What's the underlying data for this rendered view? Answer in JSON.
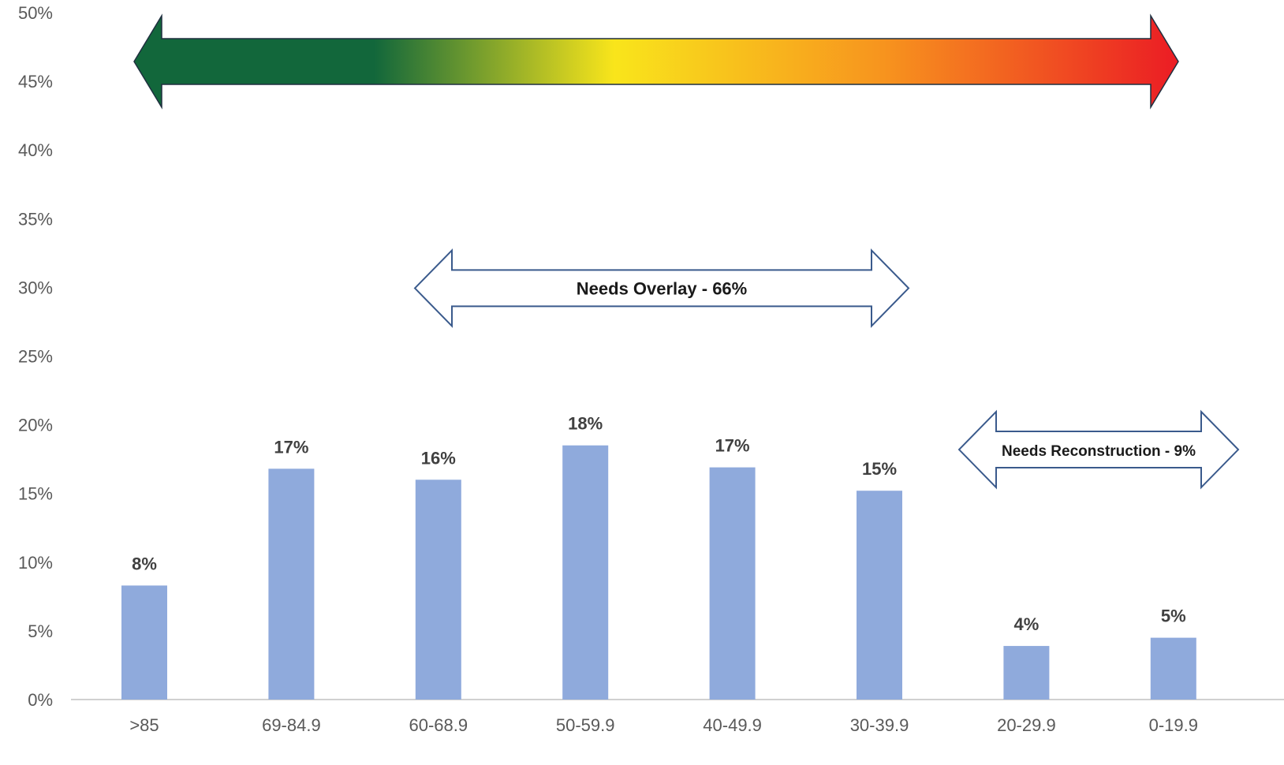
{
  "chart_data": {
    "type": "bar",
    "categories": [
      ">85",
      "69-84.9",
      "60-68.9",
      "50-59.9",
      "40-49.9",
      "30-39.9",
      "20-29.9",
      "0-19.9"
    ],
    "values": [
      8.3,
      16.8,
      16.0,
      18.5,
      16.9,
      15.2,
      3.9,
      4.5
    ],
    "data_labels": [
      "8%",
      "17%",
      "16%",
      "18%",
      "17%",
      "15%",
      "4%",
      "5%"
    ],
    "ylim": [
      0,
      50
    ],
    "yticks": [
      0,
      5,
      10,
      15,
      20,
      25,
      30,
      35,
      40,
      45,
      50
    ],
    "ytick_labels": [
      "0%",
      "5%",
      "10%",
      "15%",
      "20%",
      "25%",
      "30%",
      "35%",
      "40%",
      "45%",
      "50%"
    ],
    "title": "",
    "xlabel": "",
    "ylabel": "",
    "grid": false,
    "legend": "none",
    "bar_color": "#8faadc",
    "gradient_arrow": {
      "colors": [
        "#12673b",
        "#12673b",
        "#f9e51b",
        "#f7931e",
        "#eb1c24"
      ]
    },
    "annotations": [
      {
        "text": "Needs Overlay - 66%",
        "from_category": 2,
        "to_category": 5,
        "y": 30
      },
      {
        "text": "Needs Reconstruction - 9%",
        "from_category": 6,
        "to_category": 7,
        "y": 19
      }
    ]
  }
}
